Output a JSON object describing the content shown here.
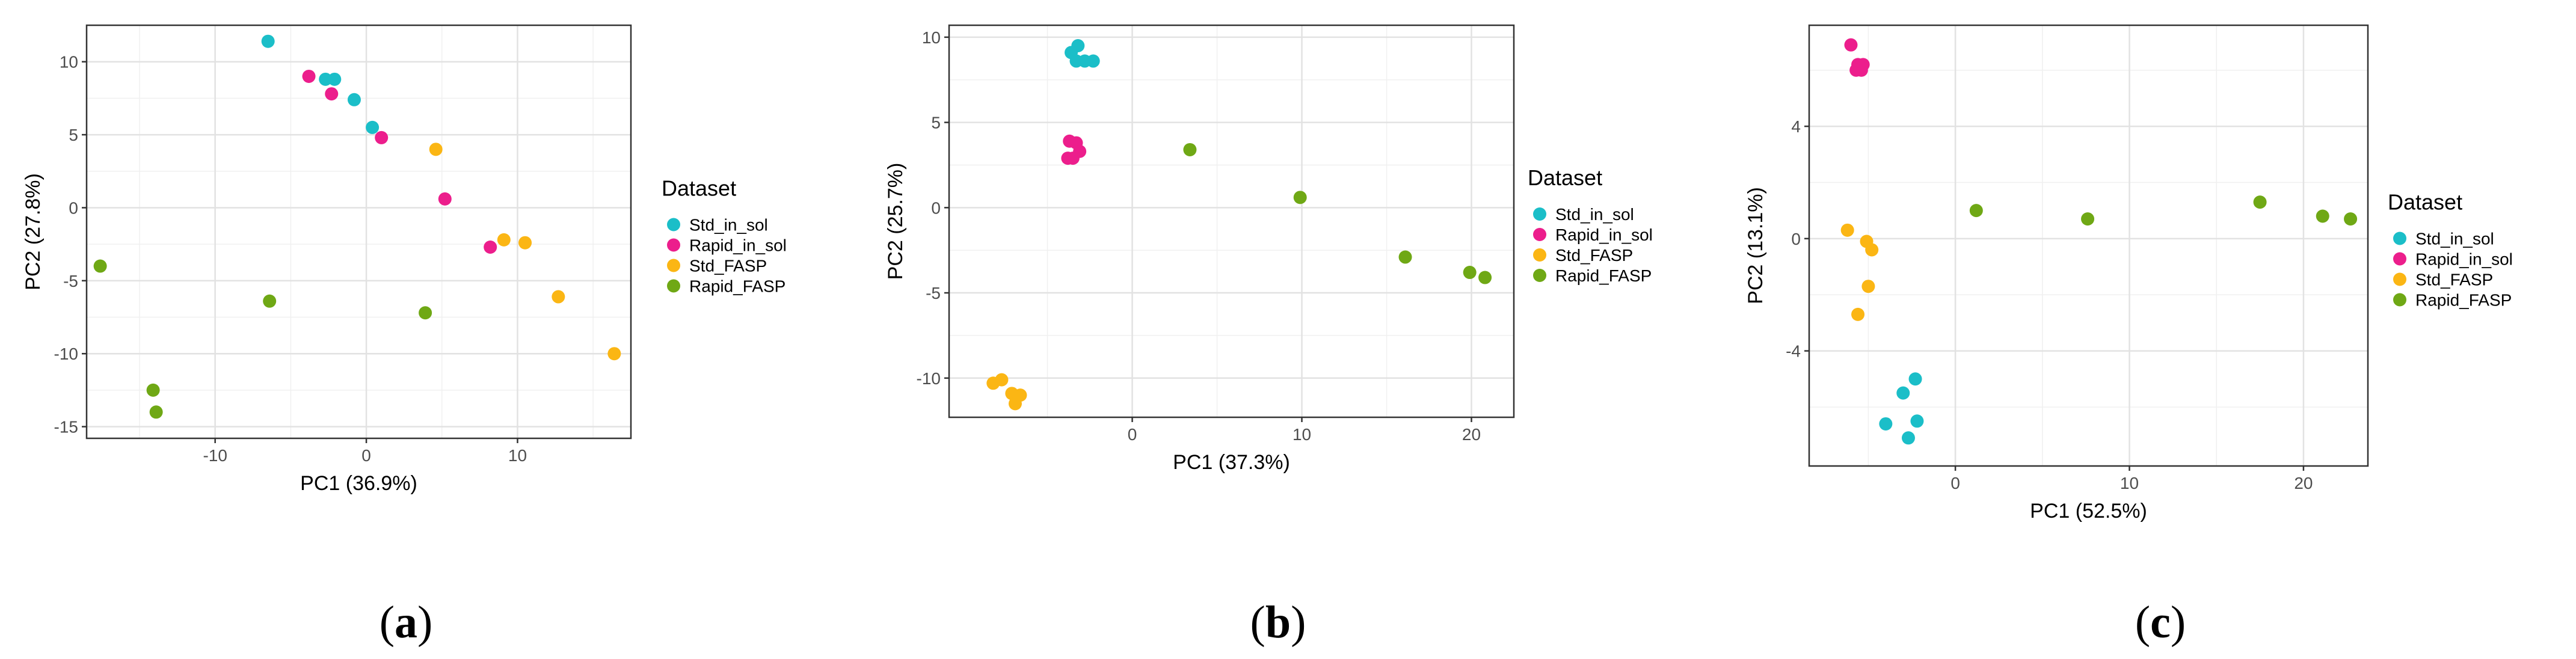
{
  "colors": {
    "Std_in_sol": "#1BBEC8",
    "Rapid_in_sol": "#EC1E8C",
    "Std_FASP": "#FBB614",
    "Rapid_FASP": "#6FA815"
  },
  "chart_data": [
    {
      "type": "scatter",
      "panel_label": "a",
      "xlabel": "PC1 (36.9%)",
      "ylabel": "PC2 (27.8%)",
      "xlim": [
        -18.5,
        17.5
      ],
      "ylim": [
        -15.8,
        12.5
      ],
      "xticks": [
        -10,
        0,
        10
      ],
      "yticks": [
        -15,
        -10,
        -5,
        0,
        5,
        10
      ],
      "grid": true,
      "legend_title": "Dataset",
      "series": [
        {
          "name": "Std_in_sol",
          "points": [
            [
              -6.5,
              11.4
            ],
            [
              -2.7,
              8.8
            ],
            [
              -2.1,
              8.8
            ],
            [
              -0.8,
              7.4
            ],
            [
              0.4,
              5.5
            ]
          ]
        },
        {
          "name": "Rapid_in_sol",
          "points": [
            [
              -3.8,
              9.0
            ],
            [
              -2.3,
              7.8
            ],
            [
              1.0,
              4.8
            ],
            [
              5.2,
              0.6
            ],
            [
              8.2,
              -2.7
            ]
          ]
        },
        {
          "name": "Std_FASP",
          "points": [
            [
              4.6,
              4.0
            ],
            [
              9.1,
              -2.2
            ],
            [
              10.5,
              -2.4
            ],
            [
              12.7,
              -6.1
            ],
            [
              16.4,
              -10.0
            ]
          ]
        },
        {
          "name": "Rapid_FASP",
          "points": [
            [
              -17.6,
              -4.0
            ],
            [
              -6.4,
              -6.4
            ],
            [
              3.9,
              -7.2
            ],
            [
              -14.1,
              -12.5
            ],
            [
              -13.9,
              -14.0
            ]
          ]
        }
      ]
    },
    {
      "type": "scatter",
      "panel_label": "b",
      "xlabel": "PC1 (37.3%)",
      "ylabel": "PC2 (25.7%)",
      "xlim": [
        -10.8,
        22.5
      ],
      "ylim": [
        -12.3,
        10.7
      ],
      "xticks": [
        0,
        10,
        20
      ],
      "yticks": [
        -10,
        -5,
        0,
        5,
        10
      ],
      "grid": true,
      "legend_title": "Dataset",
      "series": [
        {
          "name": "Std_in_sol",
          "points": [
            [
              -3.2,
              9.5
            ],
            [
              -3.6,
              9.1
            ],
            [
              -3.3,
              8.6
            ],
            [
              -2.8,
              8.6
            ],
            [
              -2.3,
              8.6
            ]
          ]
        },
        {
          "name": "Rapid_in_sol",
          "points": [
            [
              -3.7,
              3.9
            ],
            [
              -3.3,
              3.8
            ],
            [
              -3.1,
              3.3
            ],
            [
              -3.8,
              2.9
            ],
            [
              -3.5,
              2.9
            ]
          ]
        },
        {
          "name": "Std_FASP",
          "points": [
            [
              -8.2,
              -10.3
            ],
            [
              -7.7,
              -10.1
            ],
            [
              -7.1,
              -10.9
            ],
            [
              -6.6,
              -11.0
            ],
            [
              -6.9,
              -11.5
            ]
          ]
        },
        {
          "name": "Rapid_FASP",
          "points": [
            [
              3.4,
              3.4
            ],
            [
              9.9,
              0.6
            ],
            [
              16.1,
              -2.9
            ],
            [
              19.9,
              -3.8
            ],
            [
              20.8,
              -4.1
            ]
          ]
        }
      ]
    },
    {
      "type": "scatter",
      "panel_label": "c",
      "xlabel": "PC1 (52.5%)",
      "ylabel": "PC2 (13.1%)",
      "xlim": [
        -8.4,
        23.7
      ],
      "ylim": [
        -8.1,
        7.6
      ],
      "xticks": [
        0,
        10,
        20
      ],
      "yticks": [
        -4,
        0,
        4
      ],
      "grid": true,
      "legend_title": "Dataset",
      "series": [
        {
          "name": "Std_in_sol",
          "points": [
            [
              -2.3,
              -5.0
            ],
            [
              -3.0,
              -5.5
            ],
            [
              -2.2,
              -6.5
            ],
            [
              -4.0,
              -6.6
            ],
            [
              -2.7,
              -7.1
            ]
          ]
        },
        {
          "name": "Rapid_in_sol",
          "points": [
            [
              -6.0,
              6.9
            ],
            [
              -5.6,
              6.2
            ],
            [
              -5.3,
              6.2
            ],
            [
              -5.7,
              6.0
            ],
            [
              -5.4,
              6.0
            ]
          ]
        },
        {
          "name": "Std_FASP",
          "points": [
            [
              -6.2,
              0.3
            ],
            [
              -5.1,
              -0.1
            ],
            [
              -4.8,
              -0.4
            ],
            [
              -5.0,
              -1.7
            ],
            [
              -5.6,
              -2.7
            ]
          ]
        },
        {
          "name": "Rapid_FASP",
          "points": [
            [
              1.2,
              1.0
            ],
            [
              7.6,
              0.7
            ],
            [
              17.5,
              1.3
            ],
            [
              21.1,
              0.8
            ],
            [
              22.7,
              0.7
            ]
          ]
        }
      ]
    }
  ]
}
